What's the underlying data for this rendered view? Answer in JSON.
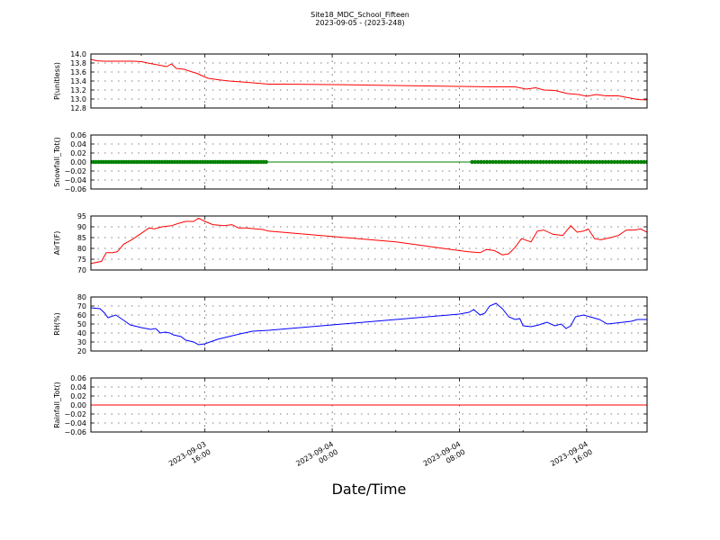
{
  "title_line1": "Site18_MDC_School_Fifteen",
  "title_line2": "2023-09-05 - (2023-248)",
  "xlabel": "Date/Time",
  "chart_data": {
    "type": "line",
    "x_ticks": [
      {
        "line1": "2023-09-03",
        "line2": "16:00",
        "t": 16
      },
      {
        "line1": "2023-09-04",
        "line2": "00:00",
        "t": 24
      },
      {
        "line1": "2023-09-04",
        "line2": "08:00",
        "t": 32
      },
      {
        "line1": "2023-09-04",
        "line2": "16:00",
        "t": 40
      }
    ],
    "x_range": [
      8.83,
      43.8
    ],
    "grid": true,
    "panels": [
      {
        "ylabel": "P(unitless)",
        "ylim": [
          12.8,
          14.0
        ],
        "yticks": [
          "14.0",
          "13.8",
          "13.6",
          "13.4",
          "13.2",
          "13.0",
          "12.8"
        ],
        "tick_values": [
          14.0,
          13.8,
          13.6,
          13.4,
          13.2,
          13.0,
          12.8
        ],
        "color": "#ff0000",
        "style": "line",
        "points": [
          [
            8.83,
            13.88
          ],
          [
            9.2,
            13.85
          ],
          [
            9.6,
            13.84
          ],
          [
            10.5,
            13.84
          ],
          [
            11.5,
            13.84
          ],
          [
            12.0,
            13.83
          ],
          [
            12.4,
            13.8
          ],
          [
            13.0,
            13.76
          ],
          [
            13.6,
            13.72
          ],
          [
            13.9,
            13.78
          ],
          [
            14.2,
            13.68
          ],
          [
            14.7,
            13.66
          ],
          [
            15.2,
            13.6
          ],
          [
            15.5,
            13.57
          ],
          [
            15.8,
            13.52
          ],
          [
            16.2,
            13.46
          ],
          [
            16.8,
            13.43
          ],
          [
            17.5,
            13.4
          ],
          [
            18.3,
            13.38
          ],
          [
            19.0,
            13.36
          ],
          [
            20.0,
            13.33
          ],
          [
            21.0,
            13.33
          ],
          [
            24.0,
            13.32
          ],
          [
            28.0,
            13.3
          ],
          [
            32.0,
            13.28
          ],
          [
            34.0,
            13.27
          ],
          [
            35.5,
            13.27
          ],
          [
            36.2,
            13.22
          ],
          [
            36.8,
            13.25
          ],
          [
            37.3,
            13.2
          ],
          [
            38.0,
            13.19
          ],
          [
            38.8,
            13.12
          ],
          [
            39.5,
            13.1
          ],
          [
            40.0,
            13.06
          ],
          [
            40.6,
            13.1
          ],
          [
            41.2,
            13.07
          ],
          [
            42.0,
            13.07
          ],
          [
            42.6,
            13.03
          ],
          [
            43.2,
            12.99
          ],
          [
            43.8,
            12.98
          ]
        ]
      },
      {
        "ylabel": "Snowfall_Tot()",
        "ylim": [
          -0.06,
          0.06
        ],
        "yticks": [
          "0.06",
          "0.04",
          "0.02",
          "0.00",
          "−0.02",
          "−0.04",
          "−0.06"
        ],
        "tick_values": [
          0.06,
          0.04,
          0.02,
          0.0,
          -0.02,
          -0.04,
          -0.06
        ],
        "color": "#008000",
        "style": "markers",
        "line_x": [
          8.83,
          43.8
        ],
        "marker_x_segments": [
          [
            8.83,
            19.85,
            70
          ],
          [
            32.8,
            43.8,
            60
          ]
        ],
        "value": 0
      },
      {
        "ylabel": "AirT(F)",
        "ylim": [
          70,
          95
        ],
        "yticks": [
          "95",
          "90",
          "85",
          "80",
          "75",
          "70"
        ],
        "tick_values": [
          95,
          90,
          85,
          80,
          75,
          70
        ],
        "color": "#ff0000",
        "style": "line",
        "points": [
          [
            8.83,
            73.0
          ],
          [
            9.5,
            74.0
          ],
          [
            9.8,
            78.0
          ],
          [
            10.2,
            78.0
          ],
          [
            10.5,
            78.5
          ],
          [
            10.9,
            82.0
          ],
          [
            11.4,
            84.0
          ],
          [
            12.0,
            87.0
          ],
          [
            12.5,
            89.5
          ],
          [
            12.8,
            89.0
          ],
          [
            13.3,
            90.0
          ],
          [
            13.9,
            90.5
          ],
          [
            14.3,
            91.5
          ],
          [
            14.8,
            92.5
          ],
          [
            15.3,
            92.5
          ],
          [
            15.6,
            94.0
          ],
          [
            16.0,
            92.5
          ],
          [
            16.5,
            91.0
          ],
          [
            17.2,
            90.5
          ],
          [
            17.7,
            91.0
          ],
          [
            18.1,
            89.5
          ],
          [
            18.6,
            89.5
          ],
          [
            19.2,
            89.0
          ],
          [
            19.6,
            88.8
          ],
          [
            20.0,
            88.0
          ],
          [
            24.0,
            85.5
          ],
          [
            28.0,
            83.0
          ],
          [
            31.5,
            79.5
          ],
          [
            32.5,
            78.5
          ],
          [
            33.3,
            78.0
          ],
          [
            33.7,
            79.5
          ],
          [
            34.2,
            79.0
          ],
          [
            34.7,
            77.0
          ],
          [
            35.1,
            77.5
          ],
          [
            35.5,
            80.5
          ],
          [
            35.9,
            84.5
          ],
          [
            36.5,
            83.0
          ],
          [
            36.9,
            88.0
          ],
          [
            37.3,
            88.5
          ],
          [
            37.9,
            86.5
          ],
          [
            38.5,
            86.0
          ],
          [
            39.0,
            90.5
          ],
          [
            39.4,
            87.5
          ],
          [
            39.8,
            88.0
          ],
          [
            40.1,
            89.0
          ],
          [
            40.5,
            84.5
          ],
          [
            40.9,
            84.0
          ],
          [
            41.5,
            85.0
          ],
          [
            42.0,
            86.0
          ],
          [
            42.5,
            88.5
          ],
          [
            43.0,
            88.5
          ],
          [
            43.4,
            89.0
          ],
          [
            43.8,
            87.5
          ]
        ]
      },
      {
        "ylabel": "RH(%)",
        "ylim": [
          20,
          80
        ],
        "yticks": [
          "80",
          "70",
          "60",
          "50",
          "40",
          "30",
          "20"
        ],
        "tick_values": [
          80,
          70,
          60,
          50,
          40,
          30,
          20
        ],
        "color": "#0000ff",
        "style": "line",
        "points": [
          [
            8.83,
            68.0
          ],
          [
            9.4,
            67.0
          ],
          [
            9.7,
            62.0
          ],
          [
            9.9,
            57.0
          ],
          [
            10.4,
            60.0
          ],
          [
            10.9,
            54.0
          ],
          [
            11.3,
            49.0
          ],
          [
            12.0,
            46.0
          ],
          [
            12.6,
            44.0
          ],
          [
            12.9,
            45.0
          ],
          [
            13.2,
            40.0
          ],
          [
            13.5,
            41.0
          ],
          [
            13.8,
            40.0
          ],
          [
            14.0,
            38.0
          ],
          [
            14.5,
            36.0
          ],
          [
            14.8,
            32.0
          ],
          [
            15.3,
            30.0
          ],
          [
            15.6,
            27.0
          ],
          [
            16.0,
            28.0
          ],
          [
            16.8,
            33.0
          ],
          [
            17.5,
            36.0
          ],
          [
            18.2,
            39.0
          ],
          [
            19.0,
            42.0
          ],
          [
            20.0,
            43.0
          ],
          [
            24.0,
            49.0
          ],
          [
            28.0,
            55.0
          ],
          [
            32.0,
            61.0
          ],
          [
            32.6,
            63.0
          ],
          [
            32.9,
            66.0
          ],
          [
            33.3,
            60.0
          ],
          [
            33.6,
            62.0
          ],
          [
            33.9,
            70.0
          ],
          [
            34.3,
            73.0
          ],
          [
            34.7,
            67.0
          ],
          [
            35.1,
            58.0
          ],
          [
            35.5,
            55.0
          ],
          [
            35.8,
            56.0
          ],
          [
            36.0,
            48.0
          ],
          [
            36.5,
            47.0
          ],
          [
            37.0,
            49.0
          ],
          [
            37.5,
            52.0
          ],
          [
            38.0,
            48.0
          ],
          [
            38.4,
            50.0
          ],
          [
            38.7,
            45.0
          ],
          [
            39.0,
            48.0
          ],
          [
            39.3,
            58.0
          ],
          [
            39.8,
            60.0
          ],
          [
            40.2,
            58.0
          ],
          [
            40.8,
            55.0
          ],
          [
            41.3,
            50.0
          ],
          [
            41.8,
            51.0
          ],
          [
            42.3,
            52.0
          ],
          [
            42.8,
            53.0
          ],
          [
            43.2,
            55.0
          ],
          [
            43.8,
            55.0
          ]
        ]
      },
      {
        "ylabel": "Rainfall_Tot()",
        "ylim": [
          -0.06,
          0.06
        ],
        "yticks": [
          "0.06",
          "0.04",
          "0.02",
          "0.00",
          "−0.02",
          "−0.04",
          "−0.06"
        ],
        "tick_values": [
          0.06,
          0.04,
          0.02,
          0.0,
          -0.02,
          -0.04,
          -0.06
        ],
        "color": "#ff0000",
        "style": "line",
        "points": [
          [
            8.83,
            0
          ],
          [
            43.8,
            0
          ]
        ]
      }
    ]
  }
}
